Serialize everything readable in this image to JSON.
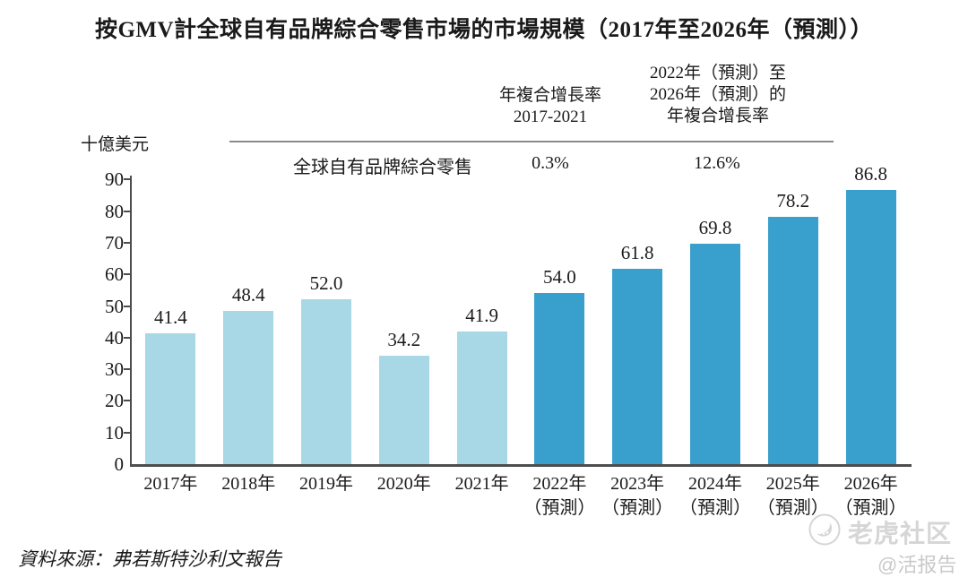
{
  "title": "按GMV計全球自有品牌綜合零售市場的市場規模（2017年至2026年（預測））",
  "unit_label": "十億美元",
  "source": "資料來源：弗若斯特沙利文報告",
  "watermark": {
    "brand": "老虎社区",
    "handle": "@活报告"
  },
  "colors": {
    "historical_bar": "#a8d7e6",
    "forecast_bar": "#399fcc",
    "axis": "#4d4d4d",
    "header_rule": "#8a8a8a",
    "text": "#1a1a1a",
    "watermark": "#d5d5d5"
  },
  "chart_data": {
    "type": "bar",
    "title": "按GMV計全球自有品牌綜合零售市場的市場規模（2017年至2026年（預測））",
    "ylabel": "十億美元",
    "xlabel": "",
    "ylim": [
      0,
      90
    ],
    "ytick_step": 10,
    "yticks": [
      0,
      10,
      20,
      30,
      40,
      50,
      60,
      70,
      80,
      90
    ],
    "grid": false,
    "legend_position": "none",
    "series_label": "全球自有品牌綜合零售",
    "categories": [
      "2017年",
      "2018年",
      "2019年",
      "2020年",
      "2021年",
      "2022年（預測）",
      "2023年（預測）",
      "2024年（預測）",
      "2025年（預測）",
      "2026年（預測）"
    ],
    "category_lines": [
      [
        "2017年"
      ],
      [
        "2018年"
      ],
      [
        "2019年"
      ],
      [
        "2020年"
      ],
      [
        "2021年"
      ],
      [
        "2022年",
        "（預測）"
      ],
      [
        "2023年",
        "（預測）"
      ],
      [
        "2024年",
        "（預測）"
      ],
      [
        "2025年",
        "（預測）"
      ],
      [
        "2026年",
        "（預測）"
      ]
    ],
    "values": [
      41.4,
      48.4,
      52.0,
      34.2,
      41.9,
      54.0,
      61.8,
      69.8,
      78.2,
      86.8
    ],
    "value_labels": [
      "41.4",
      "48.4",
      "52.0",
      "34.2",
      "41.9",
      "54.0",
      "61.8",
      "69.8",
      "78.2",
      "86.8"
    ],
    "bar_kinds": [
      "historical",
      "historical",
      "historical",
      "historical",
      "historical",
      "forecast",
      "forecast",
      "forecast",
      "forecast",
      "forecast"
    ],
    "colors": {
      "historical": "#a8d7e6",
      "forecast": "#399fcc"
    },
    "cagr": [
      {
        "label_lines": [
          "年複合增長率",
          "2017-2021"
        ],
        "value": "0.3%"
      },
      {
        "label_lines": [
          "2022年（預測）至",
          "2026年（預測）的",
          "年複合增長率"
        ],
        "value": "12.6%"
      }
    ]
  }
}
